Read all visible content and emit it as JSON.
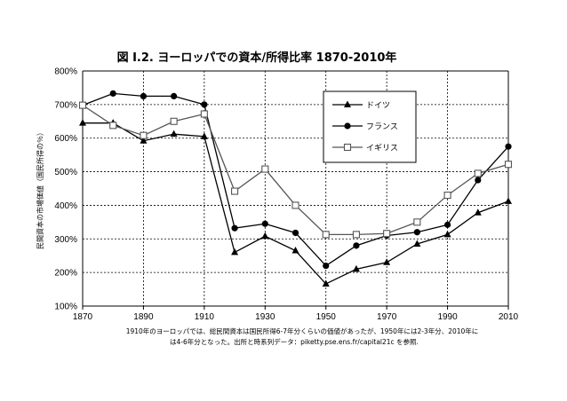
{
  "chart_data": {
    "type": "line",
    "title": "図 I.2. ヨーロッパでの資本/所得比率 1870-2010年",
    "ylabel": "民間資本の市場価値（国民所得の％）",
    "xlabel": "",
    "x": [
      1870,
      1880,
      1890,
      1900,
      1910,
      1920,
      1930,
      1940,
      1950,
      1960,
      1970,
      1980,
      1990,
      2000,
      2010
    ],
    "xticks": [
      "1870",
      "1890",
      "1910",
      "1930",
      "1950",
      "1970",
      "1990",
      "2010"
    ],
    "xlim": [
      1870,
      2010
    ],
    "yticks": [
      "100%",
      "200%",
      "300%",
      "400%",
      "500%",
      "600%",
      "700%",
      "800%"
    ],
    "ylim": [
      100,
      800
    ],
    "grid": true,
    "legend_position": "top-right",
    "series": [
      {
        "name": "ドイツ",
        "marker": "triangle",
        "color": "#000000",
        "values": [
          645,
          645,
          592,
          612,
          605,
          260,
          308,
          265,
          166,
          210,
          230,
          285,
          313,
          378,
          412
        ]
      },
      {
        "name": "フランス",
        "marker": "circle",
        "color": "#000000",
        "values": [
          698,
          733,
          725,
          725,
          700,
          332,
          345,
          318,
          220,
          280,
          310,
          320,
          342,
          475,
          575
        ]
      },
      {
        "name": "イギリス",
        "marker": "square",
        "color": "#555555",
        "values": [
          698,
          638,
          608,
          650,
          672,
          442,
          508,
          400,
          313,
          313,
          316,
          350,
          430,
          495,
          522
        ]
      }
    ],
    "notes": [
      "1910年のヨーロッパでは、総民間資本は国民所得6-7年分くらいの価値があったが、1950年には2-3年分、2010年に",
      "は4-6年分となった。出所と時系列データ：piketty.pse.ens.fr/capital21c を参照."
    ]
  }
}
